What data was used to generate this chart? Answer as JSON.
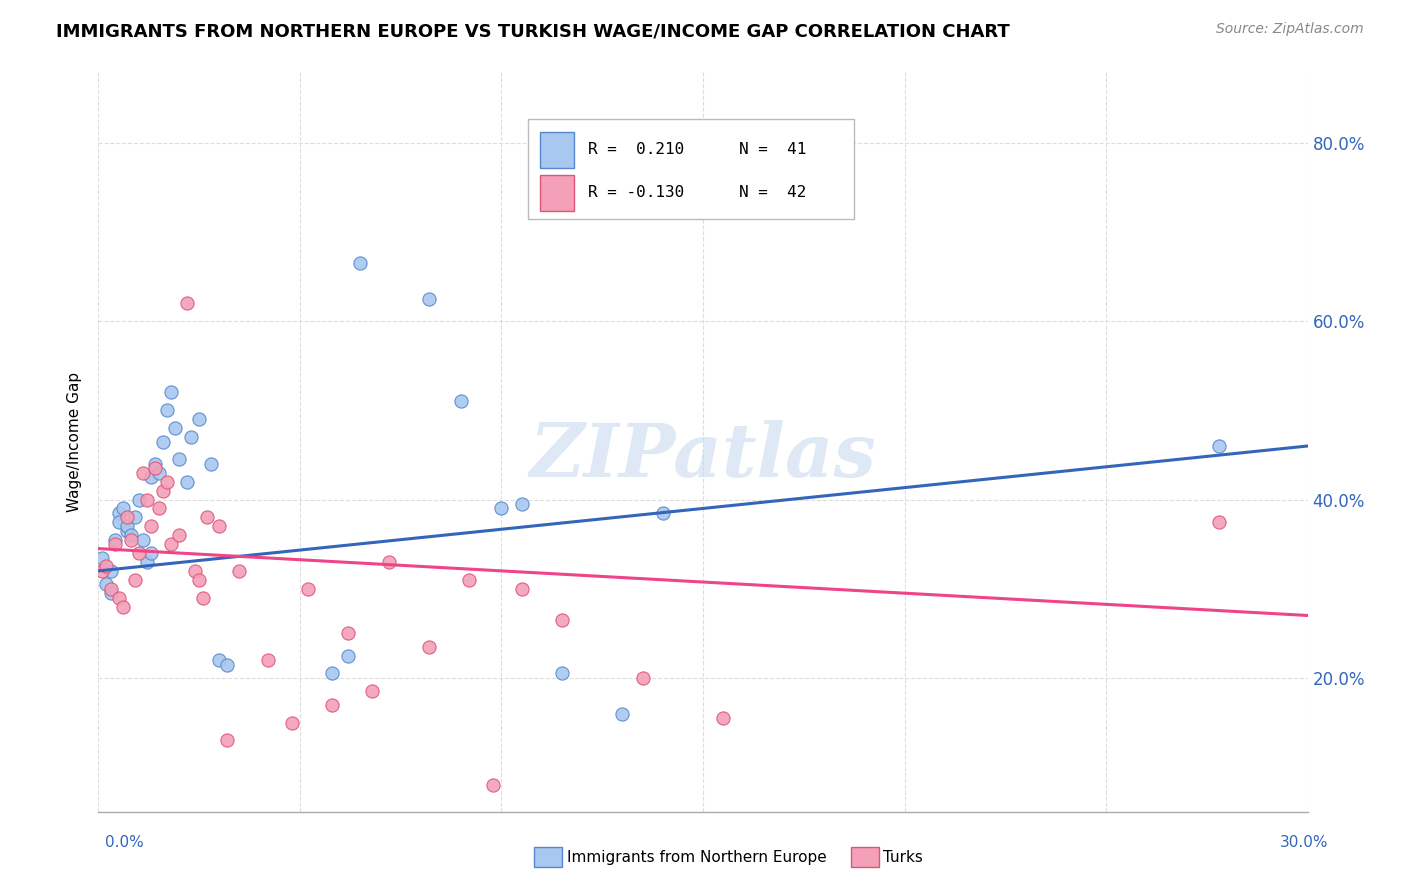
{
  "title": "IMMIGRANTS FROM NORTHERN EUROPE VS TURKISH WAGE/INCOME GAP CORRELATION CHART",
  "source": "Source: ZipAtlas.com",
  "ylabel": "Wage/Income Gap",
  "legend_blue_r": "R =  0.210",
  "legend_blue_n": "N =  41",
  "legend_pink_r": "R = -0.130",
  "legend_pink_n": "N =  42",
  "blue_color": "#A8C8F0",
  "pink_color": "#F4A0B8",
  "blue_edge_color": "#5588CC",
  "pink_edge_color": "#DD5577",
  "blue_line_color": "#3366BB",
  "pink_line_color": "#EE4488",
  "watermark": "ZIPatlas",
  "blue_scatter_x": [
    0.001,
    0.002,
    0.003,
    0.003,
    0.004,
    0.005,
    0.005,
    0.006,
    0.007,
    0.007,
    0.008,
    0.009,
    0.01,
    0.011,
    0.012,
    0.013,
    0.013,
    0.014,
    0.015,
    0.016,
    0.017,
    0.018,
    0.019,
    0.02,
    0.022,
    0.023,
    0.025,
    0.028,
    0.03,
    0.032,
    0.058,
    0.062,
    0.065,
    0.082,
    0.09,
    0.1,
    0.105,
    0.115,
    0.13,
    0.14,
    0.278
  ],
  "blue_scatter_y": [
    0.335,
    0.305,
    0.32,
    0.295,
    0.355,
    0.385,
    0.375,
    0.39,
    0.365,
    0.37,
    0.36,
    0.38,
    0.4,
    0.355,
    0.33,
    0.34,
    0.425,
    0.44,
    0.43,
    0.465,
    0.5,
    0.52,
    0.48,
    0.445,
    0.42,
    0.47,
    0.49,
    0.44,
    0.22,
    0.215,
    0.205,
    0.225,
    0.665,
    0.625,
    0.51,
    0.39,
    0.395,
    0.205,
    0.16,
    0.385,
    0.46
  ],
  "pink_scatter_x": [
    0.001,
    0.002,
    0.003,
    0.004,
    0.005,
    0.006,
    0.007,
    0.008,
    0.009,
    0.01,
    0.011,
    0.012,
    0.013,
    0.014,
    0.015,
    0.016,
    0.017,
    0.018,
    0.02,
    0.022,
    0.024,
    0.025,
    0.026,
    0.027,
    0.03,
    0.032,
    0.035,
    0.042,
    0.048,
    0.052,
    0.058,
    0.062,
    0.068,
    0.072,
    0.082,
    0.092,
    0.098,
    0.105,
    0.115,
    0.135,
    0.155,
    0.278
  ],
  "pink_scatter_y": [
    0.32,
    0.325,
    0.3,
    0.35,
    0.29,
    0.28,
    0.38,
    0.355,
    0.31,
    0.34,
    0.43,
    0.4,
    0.37,
    0.435,
    0.39,
    0.41,
    0.42,
    0.35,
    0.36,
    0.62,
    0.32,
    0.31,
    0.29,
    0.38,
    0.37,
    0.13,
    0.32,
    0.22,
    0.15,
    0.3,
    0.17,
    0.25,
    0.185,
    0.33,
    0.235,
    0.31,
    0.08,
    0.3,
    0.265,
    0.2,
    0.155,
    0.375
  ],
  "xlim": [
    0.0,
    0.3
  ],
  "ylim": [
    0.05,
    0.88
  ],
  "yticks": [
    0.2,
    0.4,
    0.6,
    0.8
  ],
  "xticks": [
    0.0,
    0.05,
    0.1,
    0.15,
    0.2,
    0.25,
    0.3
  ],
  "blue_trend": [
    0.32,
    0.46
  ],
  "pink_trend": [
    0.345,
    0.27
  ],
  "background_color": "#FFFFFF",
  "grid_color": "#DDDDDD"
}
